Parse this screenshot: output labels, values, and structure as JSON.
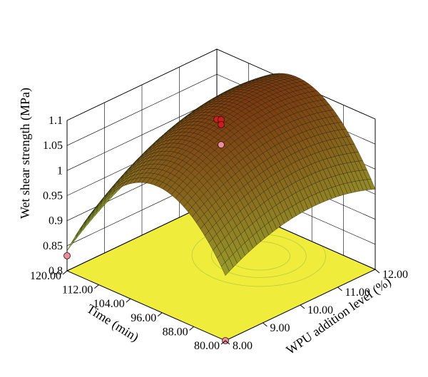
{
  "chart_data": {
    "type": "surface3d",
    "zlabel": "Wet shear strength (MPa)",
    "xlabel": "WPU addition level (%)",
    "ylabel": "Time (min)",
    "x_ticks": [
      "8.00",
      "9.00",
      "10.00",
      "11.00",
      "12.00"
    ],
    "y_ticks": [
      "80.00",
      "88.00",
      "96.00",
      "104.00",
      "112.00",
      "120.00"
    ],
    "z_ticks": [
      "0.8",
      "0.85",
      "0.9",
      "0.95",
      "1",
      "1.05",
      "1.1"
    ],
    "xlim": [
      8,
      12
    ],
    "ylim": [
      80,
      120
    ],
    "zlim": [
      0.8,
      1.1
    ],
    "surface_corner_values": {
      "x8_t80": 0.93,
      "x8_t120": 0.84,
      "x12_t80": 0.96,
      "x12_t120": 0.95
    },
    "surface_peak": {
      "x": 10.9,
      "t": 99,
      "z": 1.075
    },
    "design_points": [
      {
        "x": 8,
        "t": 120,
        "z": 0.83,
        "above_surface": false
      },
      {
        "x": 8,
        "t": 80,
        "z": 0.8,
        "above_surface": false
      },
      {
        "x": 12,
        "t": 120,
        "z": 0.96,
        "above_surface": true
      },
      {
        "x": 10,
        "t": 100,
        "z": 1.1,
        "above_surface": true
      },
      {
        "x": 10,
        "t": 100,
        "z": 1.09,
        "above_surface": true
      },
      {
        "x": 10,
        "t": 100,
        "z": 1.05,
        "above_surface": false
      }
    ],
    "colors": {
      "surface_low": "#a8cc3a",
      "surface_high": "#7a3a10",
      "floor": "#f0ec3c",
      "point_above": "#c81e1e",
      "point_below": "#e8909a"
    }
  }
}
